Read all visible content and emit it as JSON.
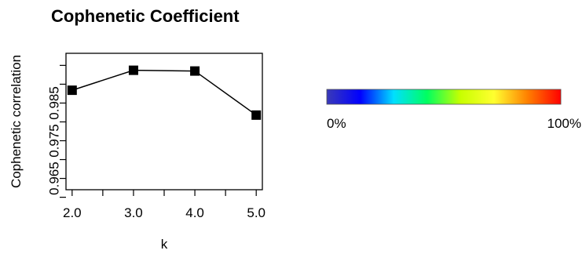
{
  "chart_data": {
    "type": "line",
    "title": "Cophenetic Coefficient",
    "xlabel": "k",
    "ylabel": "Cophenetic correlation",
    "x_ticks": [
      2,
      2.5,
      3,
      3.5,
      4,
      4.5,
      5
    ],
    "x_tick_labels": [
      "2.0",
      "",
      "3.0",
      "",
      "4.0",
      "",
      "5.0"
    ],
    "y_ticks": [
      0.96,
      0.965,
      0.97,
      0.975,
      0.98,
      0.985,
      0.99,
      0.995
    ],
    "y_tick_labels": [
      "",
      "0.965",
      "",
      "0.975",
      "",
      "0.985",
      "",
      ""
    ],
    "xlim": [
      1.9,
      5.1
    ],
    "ylim": [
      0.962,
      0.9982
    ],
    "series": [
      {
        "x": [
          2.0,
          3.0,
          4.0,
          5.0
        ],
        "y": [
          0.9884,
          0.9937,
          0.9935,
          0.9818
        ],
        "color": "#000000",
        "marker": "square"
      }
    ],
    "grid": false,
    "colorbar": {
      "min_label": "0%",
      "max_label": "100%",
      "colors": [
        "#3a3ab8",
        "#0000ff",
        "#00dfff",
        "#00ff60",
        "#c8ff00",
        "#ffff30",
        "#ff8000",
        "#ff0000"
      ]
    }
  }
}
